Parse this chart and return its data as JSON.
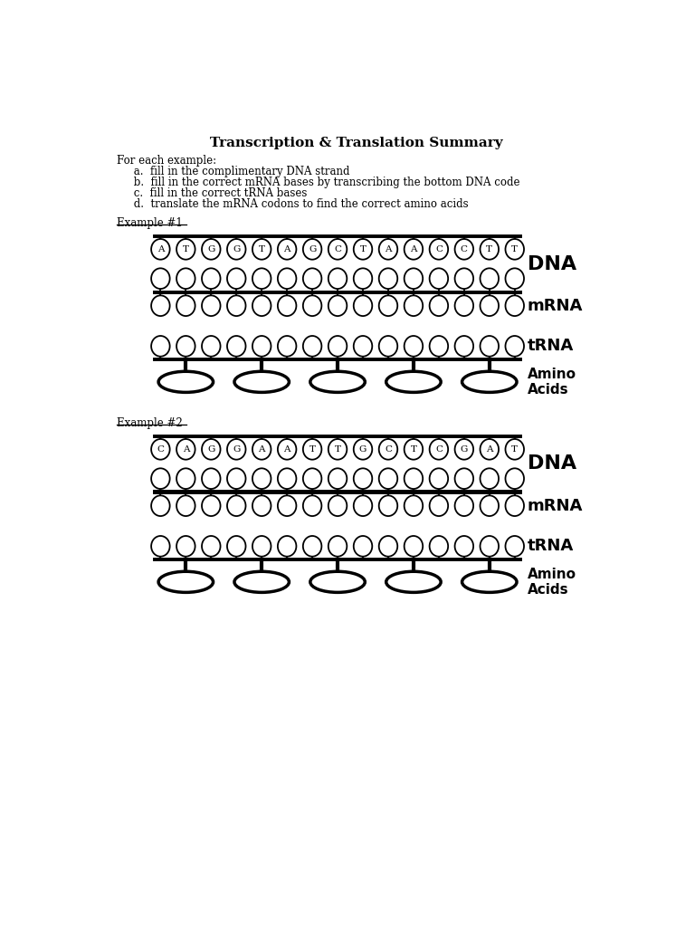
{
  "title": "Transcription & Translation Summary",
  "instructions": [
    "For each example:",
    "     a.  fill in the complimentary DNA strand",
    "     b.  fill in the correct mRNA bases by transcribing the bottom DNA code",
    "     c.  fill in the correct tRNA bases",
    "     d.  translate the mRNA codons to find the correct amino acids"
  ],
  "example1_label": "Example #1",
  "example2_label": "Example #2",
  "dna1_bases": [
    "A",
    "T",
    "G",
    "G",
    "T",
    "A",
    "G",
    "C",
    "T",
    "A",
    "A",
    "C",
    "C",
    "T",
    "T"
  ],
  "dna2_bases": [
    "C",
    "A",
    "G",
    "G",
    "A",
    "A",
    "T",
    "T",
    "G",
    "C",
    "T",
    "C",
    "G",
    "A",
    "T"
  ],
  "n_bases": 15,
  "n_amino": 5,
  "background": "#ffffff",
  "line_color": "#000000",
  "text_color": "#000000",
  "dna_label": "DNA",
  "mrna_label": "mRNA",
  "trna_label": "tRNA",
  "amino_label": "Amino\nAcids"
}
